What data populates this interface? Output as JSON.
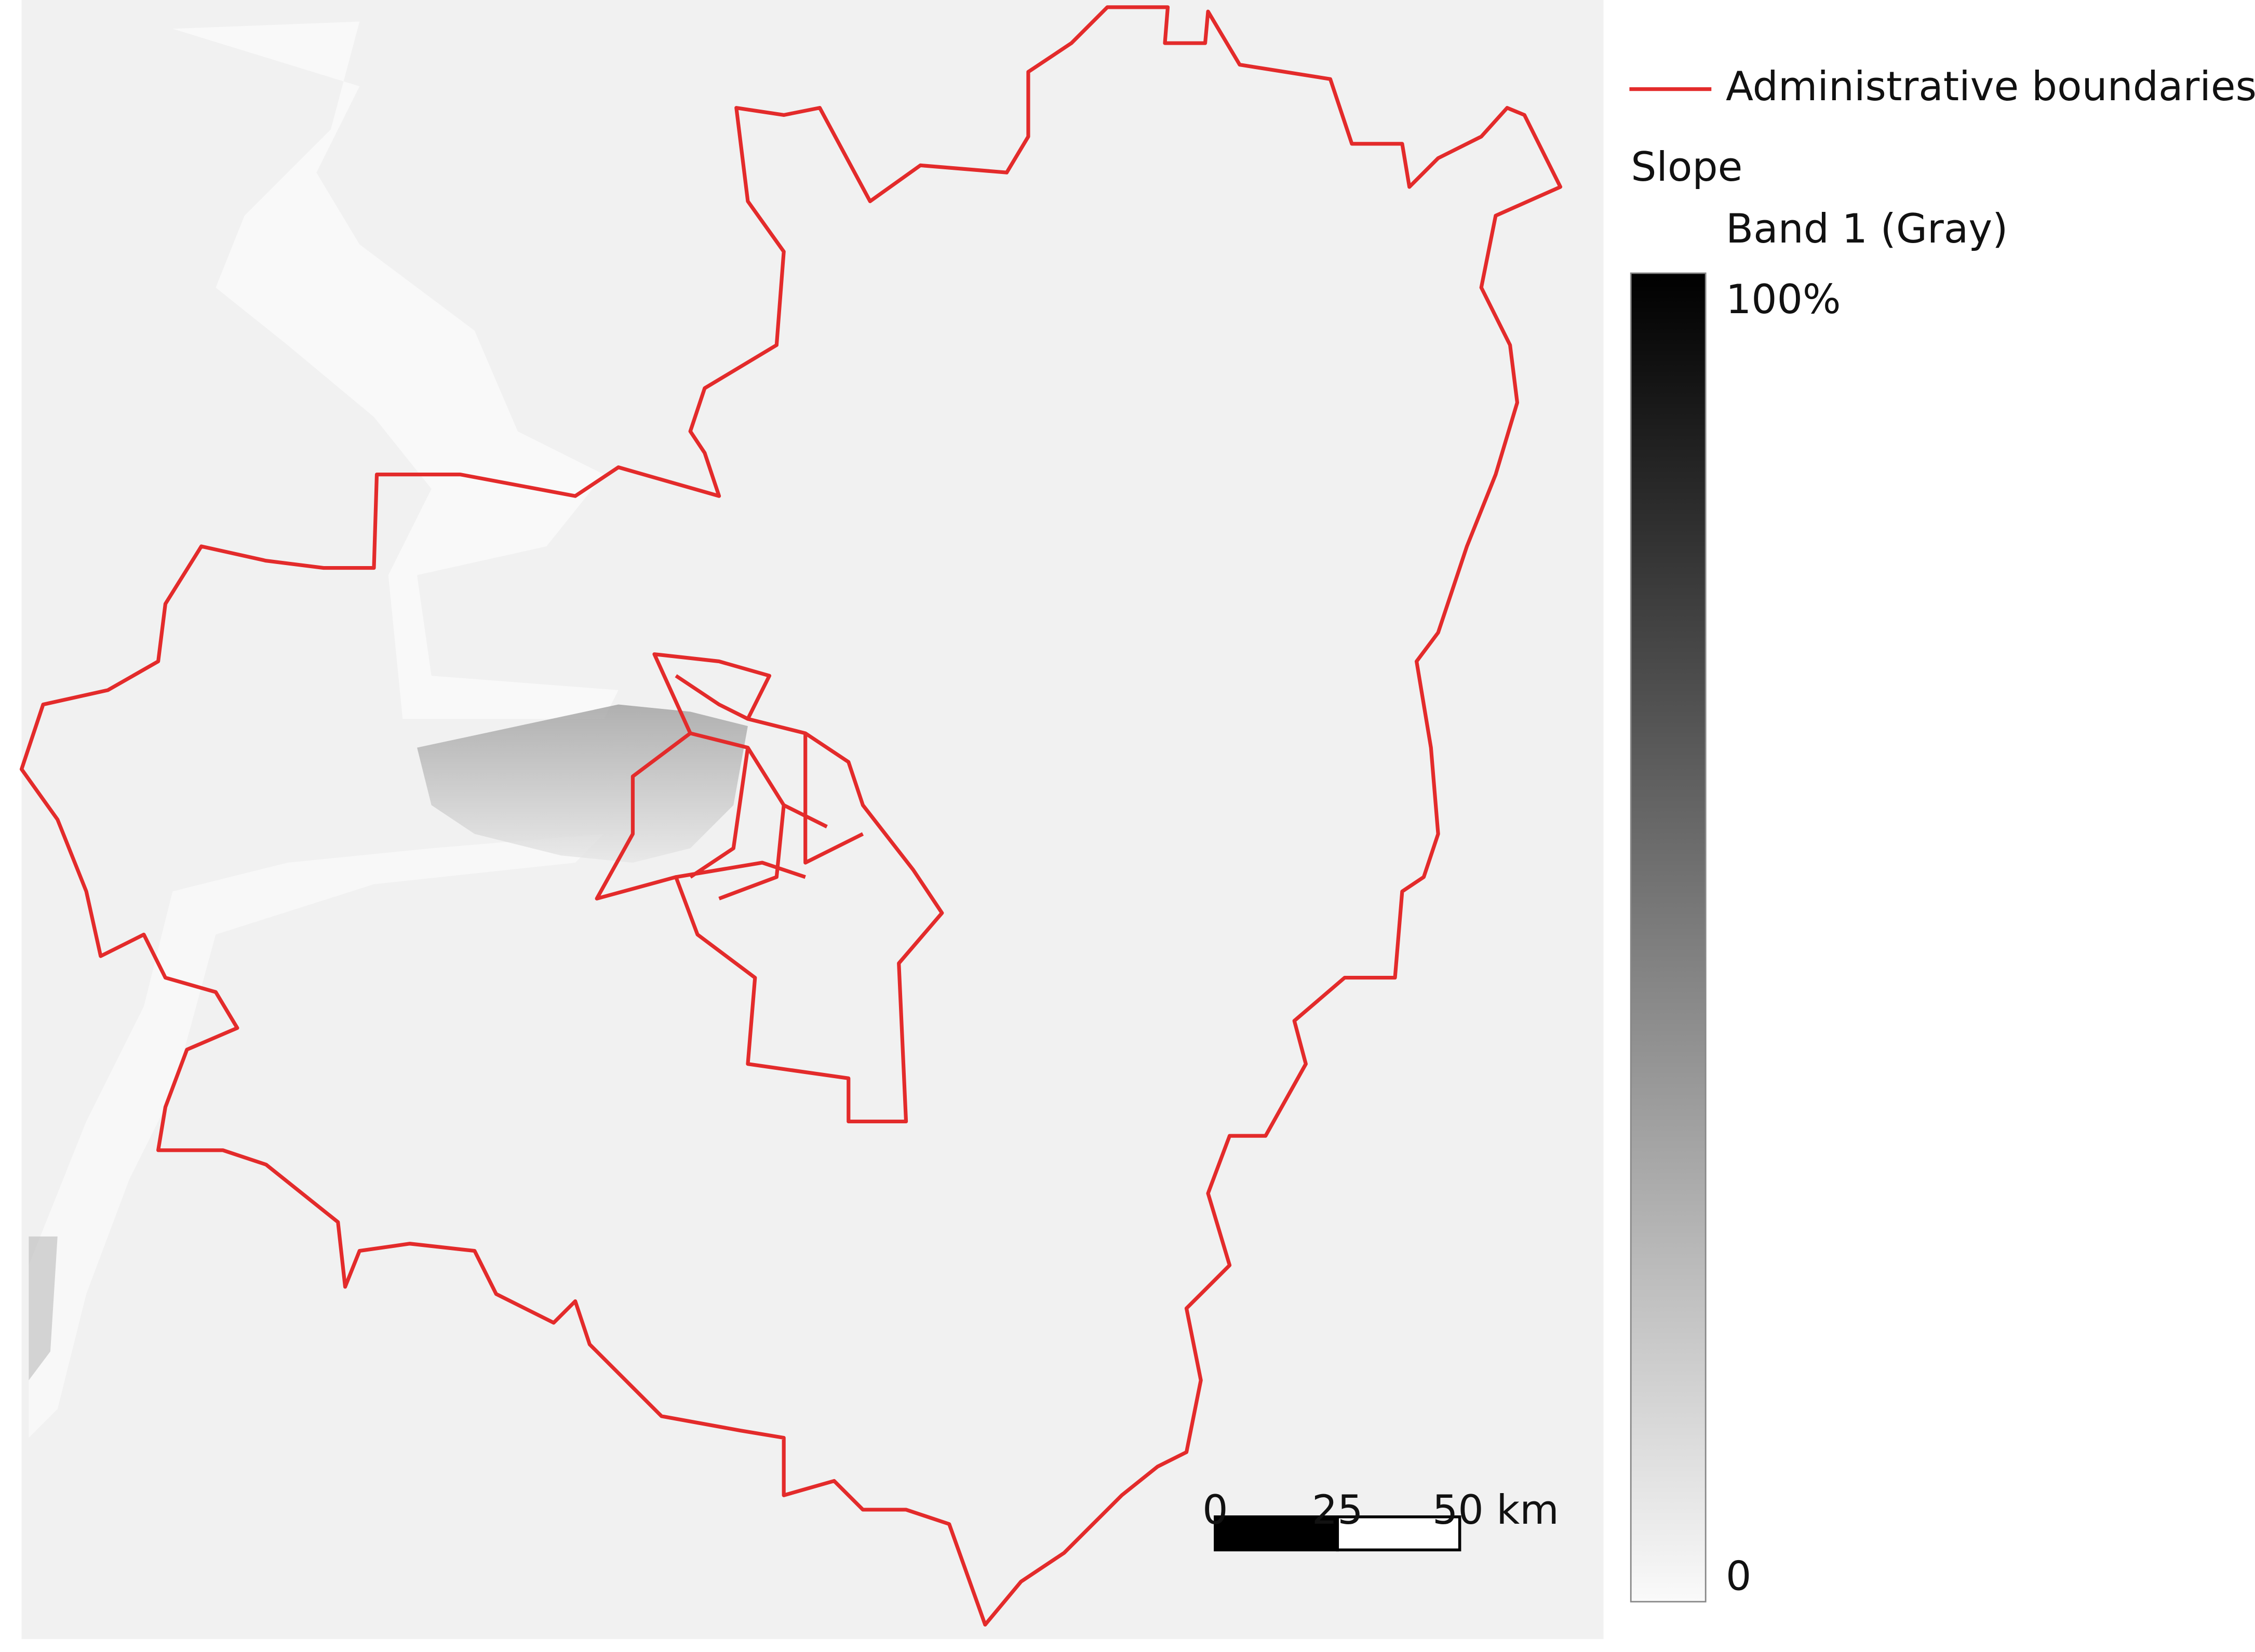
{
  "legend": {
    "boundary_label": "Administrative boundaries",
    "raster_title": "Slope",
    "band_label": "Band 1 (Gray)",
    "max_label": "100%",
    "min_label": "0"
  },
  "scale_bar": {
    "labels": [
      "0",
      "25",
      "50 km"
    ]
  }
}
